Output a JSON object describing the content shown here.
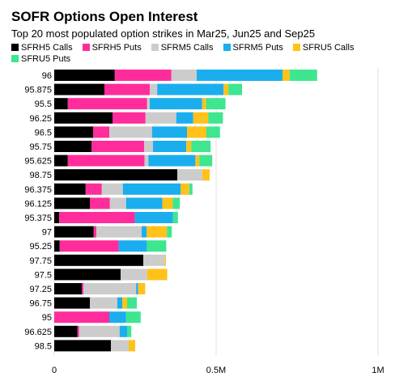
{
  "chart_data": {
    "type": "bar",
    "stacked": true,
    "orientation": "horizontal",
    "title": "SOFR Options Open Interest",
    "subtitle": "Top 20 most populated option strikes in Mar25, Jun25 and Sep25",
    "categories": [
      "96",
      "95.875",
      "95.5",
      "96.25",
      "96.5",
      "95.75",
      "95.625",
      "98.75",
      "96.375",
      "96.125",
      "95.375",
      "97",
      "95.25",
      "97.75",
      "97.5",
      "97.25",
      "96.75",
      "95",
      "96.625",
      "98.5"
    ],
    "x_ticks": [
      {
        "value": 0,
        "label": "0"
      },
      {
        "value": 500000,
        "label": "0.5M"
      },
      {
        "value": 1000000,
        "label": "1M"
      }
    ],
    "xlim": [
      0,
      1000000
    ],
    "grid": "vertical",
    "legend_position": "top",
    "series": [
      {
        "name": "SFRH5 Calls",
        "color": "#000000",
        "values": [
          187000,
          155000,
          42000,
          180000,
          120000,
          115000,
          42000,
          380000,
          97000,
          110000,
          15000,
          122000,
          17000,
          275000,
          205000,
          85000,
          110000,
          0,
          72000,
          175000
        ]
      },
      {
        "name": "SFRH5 Puts",
        "color": "#ff2d9b",
        "values": [
          175000,
          140000,
          245000,
          102000,
          50000,
          163000,
          237000,
          0,
          50000,
          62000,
          234000,
          8000,
          182000,
          0,
          0,
          5000,
          0,
          170000,
          5000,
          0
        ]
      },
      {
        "name": "SFRM5 Calls",
        "color": "#cccccc",
        "values": [
          78000,
          23000,
          8000,
          95000,
          132000,
          27000,
          12000,
          77000,
          65000,
          50000,
          0,
          140000,
          0,
          67000,
          82000,
          163000,
          85000,
          0,
          125000,
          55000
        ]
      },
      {
        "name": "SFRM5 Puts",
        "color": "#1aaeef",
        "values": [
          265000,
          205000,
          162000,
          52000,
          108000,
          103000,
          145000,
          0,
          178000,
          112000,
          118000,
          15000,
          87000,
          0,
          0,
          6000,
          15000,
          52000,
          23000,
          0
        ]
      },
      {
        "name": "SFRU5 Calls",
        "color": "#ffc21a",
        "values": [
          22000,
          15000,
          12000,
          47000,
          60000,
          15000,
          12000,
          23000,
          27000,
          32000,
          0,
          63000,
          0,
          3000,
          62000,
          22000,
          15000,
          0,
          0,
          20000
        ]
      },
      {
        "name": "SFRU5 Puts",
        "color": "#3de68f",
        "values": [
          85000,
          42000,
          60000,
          45000,
          42000,
          60000,
          40000,
          0,
          10000,
          22000,
          15000,
          15000,
          60000,
          0,
          0,
          0,
          30000,
          45000,
          13000,
          0
        ]
      }
    ]
  }
}
